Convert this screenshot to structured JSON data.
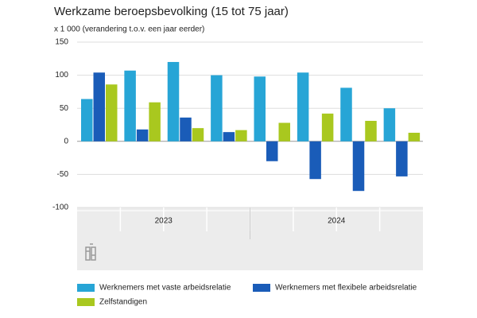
{
  "chart_data": {
    "type": "bar",
    "title": "Werkzame beroepsbevolking (15 tot 75 jaar)",
    "subtitle": "x 1 000 (verandering t.o.v. een jaar eerder)",
    "categories": [
      null,
      null,
      null,
      null,
      null,
      null,
      null,
      null
    ],
    "year_groups": [
      "2023",
      "2024"
    ],
    "series": [
      {
        "name": "Werknemers met vaste arbeidsrelatie",
        "color": "#27a5d6",
        "values": [
          64,
          107,
          120,
          100,
          98,
          104,
          81,
          50
        ]
      },
      {
        "name": "Werknemers met flexibele arbeidsrelatie",
        "color": "#1a5cb8",
        "values": [
          104,
          18,
          36,
          14,
          -30,
          -57,
          -75,
          -53
        ]
      },
      {
        "name": "Zelfstandigen",
        "color": "#a9c81f",
        "values": [
          86,
          59,
          20,
          17,
          28,
          42,
          31,
          13
        ]
      }
    ],
    "ylim": [
      -100,
      150
    ],
    "yticks": [
      150,
      100,
      50,
      0,
      -50,
      -100
    ],
    "grid": true
  }
}
